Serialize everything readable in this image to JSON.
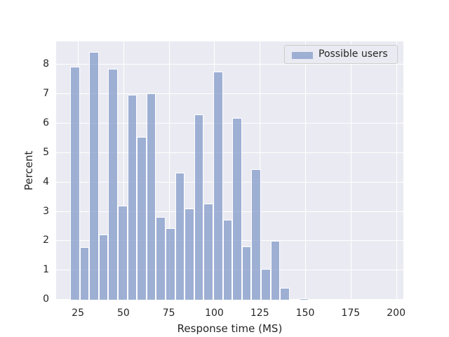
{
  "chart_data": {
    "type": "bar",
    "subtype": "histogram",
    "title": "",
    "xlabel": "Response time (MS)",
    "ylabel": "Percent",
    "xlim": [
      13,
      204
    ],
    "ylim": [
      0,
      8.8
    ],
    "xticks": [
      25,
      50,
      75,
      100,
      125,
      150,
      175,
      200
    ],
    "yticks": [
      0,
      1,
      2,
      3,
      4,
      5,
      6,
      7,
      8
    ],
    "grid": true,
    "legend": {
      "position": "upper right",
      "entries": [
        "Possible users"
      ]
    },
    "bar_color": "#7d96c7",
    "bin_start": 20.7,
    "bin_width": 5.25,
    "series": [
      {
        "name": "Possible users",
        "bin_edges_start": [
          20.7,
          25.95,
          31.2,
          36.45,
          41.7,
          46.95,
          52.2,
          57.45,
          62.7,
          67.95,
          73.2,
          78.45,
          83.7,
          88.95,
          94.2,
          99.45,
          104.7,
          109.95,
          115.2,
          120.45,
          125.7,
          130.95,
          136.2,
          141.45,
          146.7,
          151.95,
          157.2
        ],
        "values": [
          7.93,
          1.8,
          8.43,
          2.23,
          7.86,
          3.21,
          6.99,
          5.56,
          7.02,
          2.83,
          2.44,
          4.34,
          3.11,
          6.32,
          3.28,
          7.78,
          2.73,
          6.2,
          1.82,
          4.45,
          1.05,
          2.01,
          0.41,
          0.0,
          0.05,
          0.0,
          0.03
        ]
      }
    ]
  },
  "legend_label": "Possible users",
  "xlabel": "Response time (MS)",
  "ylabel": "Percent"
}
